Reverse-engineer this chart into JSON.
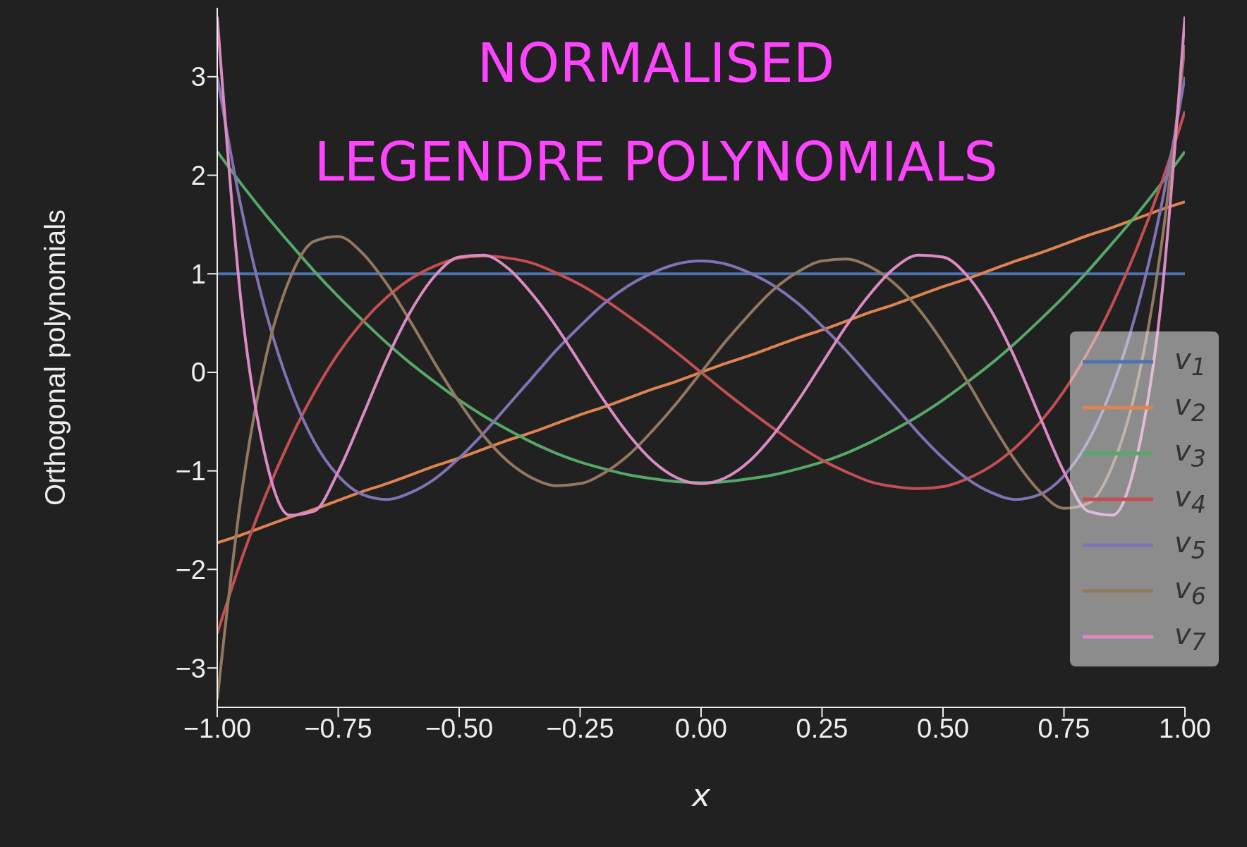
{
  "chart_data": {
    "type": "line",
    "title": "NORMALISED\nLEGENDRE POLYNOMIALS",
    "xlabel": "x",
    "ylabel": "Orthogonal polynomials",
    "x": [
      -1,
      -0.95,
      -0.9,
      -0.85,
      -0.8,
      -0.75,
      -0.7,
      -0.65,
      -0.6,
      -0.55,
      -0.5,
      -0.45,
      -0.4,
      -0.35,
      -0.3,
      -0.25,
      -0.2,
      -0.15,
      -0.1,
      -0.05,
      0,
      0.05,
      0.1,
      0.15,
      0.2,
      0.25,
      0.3,
      0.35,
      0.4,
      0.45,
      0.5,
      0.55,
      0.6,
      0.65,
      0.7,
      0.75,
      0.8,
      0.85,
      0.9,
      0.95,
      1
    ],
    "series": [
      {
        "name": "v$_{1}$",
        "color": "#4c72b0",
        "values": [
          1,
          1,
          1,
          1,
          1,
          1,
          1,
          1,
          1,
          1,
          1,
          1,
          1,
          1,
          1,
          1,
          1,
          1,
          1,
          1,
          1,
          1,
          1,
          1,
          1,
          1,
          1,
          1,
          1,
          1,
          1,
          1,
          1,
          1,
          1,
          1,
          1,
          1,
          1,
          1,
          1
        ]
      },
      {
        "name": "v$_{2}$",
        "color": "#dd8452",
        "values": [
          -1.73,
          -1.65,
          -1.56,
          -1.47,
          -1.39,
          -1.3,
          -1.21,
          -1.13,
          -1.04,
          -0.95,
          -0.87,
          -0.78,
          -0.69,
          -0.61,
          -0.52,
          -0.43,
          -0.35,
          -0.26,
          -0.17,
          -0.09,
          0,
          0.09,
          0.17,
          0.26,
          0.35,
          0.43,
          0.52,
          0.61,
          0.69,
          0.78,
          0.87,
          0.95,
          1.04,
          1.13,
          1.21,
          1.3,
          1.39,
          1.47,
          1.56,
          1.65,
          1.73
        ]
      },
      {
        "name": "v$_{3}$",
        "color": "#55a868",
        "values": [
          2.24,
          1.91,
          1.6,
          1.31,
          1.03,
          0.77,
          0.53,
          0.3,
          0.09,
          -0.1,
          -0.28,
          -0.44,
          -0.58,
          -0.71,
          -0.82,
          -0.91,
          -0.98,
          -1.04,
          -1.08,
          -1.11,
          -1.12,
          -1.11,
          -1.08,
          -1.04,
          -0.98,
          -0.91,
          -0.82,
          -0.71,
          -0.58,
          -0.44,
          -0.28,
          -0.1,
          0.09,
          0.3,
          0.53,
          0.77,
          1.03,
          1.31,
          1.6,
          1.91,
          2.24
        ]
      },
      {
        "name": "v$_{4}$",
        "color": "#c44e52",
        "values": [
          -2.65,
          -1.9,
          -1.25,
          -0.69,
          -0.21,
          0.19,
          0.51,
          0.76,
          0.95,
          1.08,
          1.16,
          1.18,
          1.16,
          1.11,
          1.01,
          0.89,
          0.74,
          0.57,
          0.39,
          0.2,
          0,
          -0.2,
          -0.39,
          -0.57,
          -0.74,
          -0.89,
          -1.01,
          -1.11,
          -1.16,
          -1.18,
          -1.16,
          -1.08,
          -0.95,
          -0.76,
          -0.51,
          -0.19,
          0.21,
          0.69,
          1.25,
          1.9,
          2.65
        ]
      },
      {
        "name": "v$_{5}$",
        "color": "#8172b3",
        "values": [
          3.0,
          1.66,
          0.62,
          -0.15,
          -0.7,
          -1.05,
          -1.24,
          -1.29,
          -1.22,
          -1.08,
          -0.87,
          -0.62,
          -0.34,
          -0.06,
          0.22,
          0.47,
          0.7,
          0.88,
          1.01,
          1.1,
          1.13,
          1.1,
          1.01,
          0.88,
          0.7,
          0.47,
          0.22,
          -0.06,
          -0.34,
          -0.62,
          -0.87,
          -1.08,
          -1.22,
          -1.29,
          -1.24,
          -1.05,
          -0.7,
          -0.15,
          0.62,
          1.66,
          3.0
        ]
      },
      {
        "name": "v$_{6}$",
        "color": "#937860",
        "values": [
          -3.32,
          -1.24,
          0.14,
          0.95,
          1.33,
          1.38,
          1.21,
          0.9,
          0.51,
          0.09,
          -0.3,
          -0.64,
          -0.9,
          -1.07,
          -1.15,
          -1.13,
          -1.02,
          -0.84,
          -0.59,
          -0.31,
          0,
          0.31,
          0.59,
          0.84,
          1.02,
          1.13,
          1.15,
          1.07,
          0.9,
          0.64,
          0.3,
          -0.09,
          -0.51,
          -0.9,
          -1.21,
          -1.38,
          -1.33,
          -0.95,
          -0.14,
          1.24,
          3.32
        ]
      },
      {
        "name": "v$_{7}$",
        "color": "#da8bc3",
        "values": [
          3.61,
          0.68,
          -0.87,
          -1.45,
          -1.41,
          -1.01,
          -0.45,
          0.13,
          0.62,
          0.98,
          1.17,
          1.19,
          1.06,
          0.8,
          0.47,
          0.09,
          -0.29,
          -0.63,
          -0.9,
          -1.07,
          -1.13,
          -1.07,
          -0.9,
          -0.63,
          -0.29,
          0.09,
          0.47,
          0.8,
          1.06,
          1.19,
          1.17,
          0.98,
          0.62,
          0.13,
          -0.45,
          -1.01,
          -1.41,
          -1.45,
          -0.87,
          0.68,
          3.61
        ]
      }
    ],
    "xlim": [
      -1,
      1
    ],
    "xticks": [
      {
        "value": -1,
        "label": "−1.00"
      },
      {
        "value": -0.75,
        "label": "−0.75"
      },
      {
        "value": -0.5,
        "label": "−0.50"
      },
      {
        "value": -0.25,
        "label": "−0.25"
      },
      {
        "value": 0,
        "label": "0.00"
      },
      {
        "value": 0.25,
        "label": "0.25"
      },
      {
        "value": 0.5,
        "label": "0.50"
      },
      {
        "value": 0.75,
        "label": "0.75"
      },
      {
        "value": 1,
        "label": "1.00"
      }
    ],
    "ylim": [
      -3.4,
      3.7
    ],
    "yticks": [
      {
        "value": -3,
        "label": "−3"
      },
      {
        "value": -2,
        "label": "−2"
      },
      {
        "value": -1,
        "label": "−1"
      },
      0,
      1,
      2,
      3
    ],
    "grid": false,
    "legend": "right",
    "marker": "none",
    "line_style": "solid"
  }
}
